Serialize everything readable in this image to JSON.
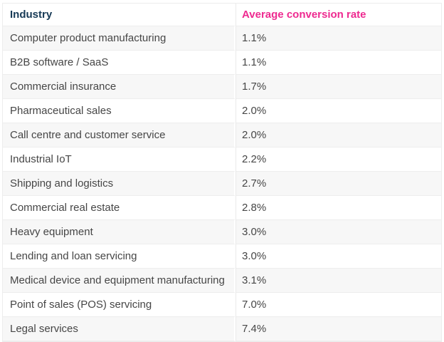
{
  "theme": {
    "page_background": "#ffffff",
    "header_industry_color": "#173a56",
    "header_rate_color": "#ee2a90",
    "body_text_color": "#464646",
    "stripe_color": "#f7f7f7",
    "border_color": "#ededed"
  },
  "chart_data": {
    "type": "table",
    "columns": [
      "Industry",
      "Average conversion rate"
    ],
    "rows": [
      [
        "Computer product manufacturing",
        "1.1%"
      ],
      [
        "B2B software / SaaS",
        "1.1%"
      ],
      [
        "Commercial insurance",
        "1.7%"
      ],
      [
        "Pharmaceutical sales",
        "2.0%"
      ],
      [
        "Call centre and customer service",
        "2.0%"
      ],
      [
        "Industrial IoT",
        "2.2%"
      ],
      [
        "Shipping and logistics",
        "2.7%"
      ],
      [
        "Commercial real estate",
        "2.8%"
      ],
      [
        "Heavy equipment",
        "3.0%"
      ],
      [
        "Lending and loan servicing",
        "3.0%"
      ],
      [
        "Medical device and equipment manufacturing",
        "3.1%"
      ],
      [
        "Point of sales (POS) servicing",
        "7.0%"
      ],
      [
        "Legal services",
        "7.4%"
      ]
    ],
    "values_numeric": [
      1.1,
      1.1,
      1.7,
      2.0,
      2.0,
      2.2,
      2.7,
      2.8,
      3.0,
      3.0,
      3.1,
      7.0,
      7.4
    ],
    "value_unit": "%"
  }
}
